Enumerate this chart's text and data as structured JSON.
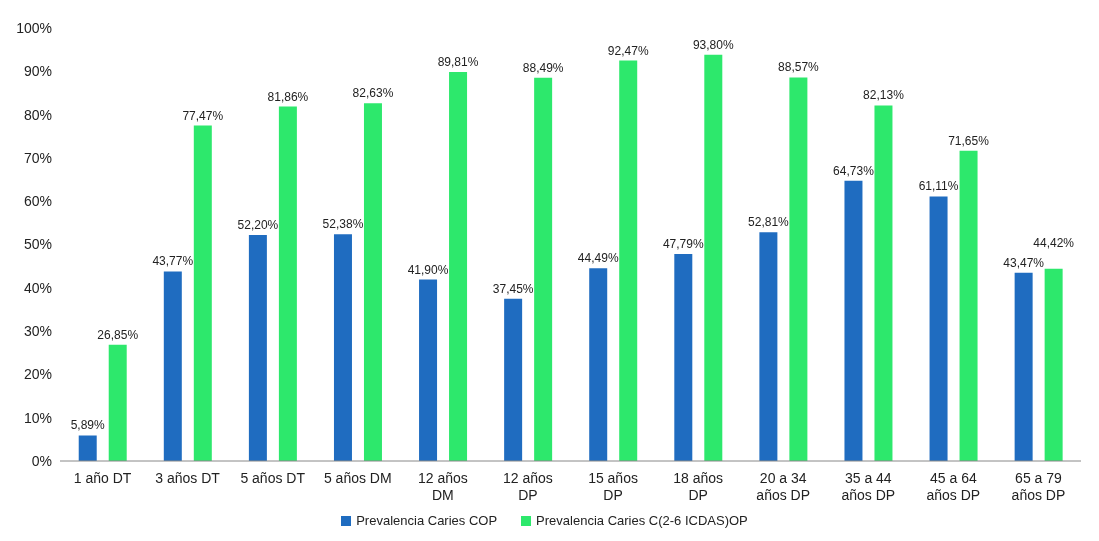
{
  "chart_data": {
    "type": "bar",
    "categories": [
      "1 año DT",
      "3 años DT",
      "5 años DT",
      "5 años DM",
      "12 años DM",
      "12 años DP",
      "15 años DP",
      "18 años DP",
      "20 a 34 años DP",
      "35 a 44 años DP",
      "45 a 64 años DP",
      "65 a 79 años DP"
    ],
    "series": [
      {
        "name": "Prevalencia Caries COP",
        "color": "#1f6cc0",
        "values": [
          5.89,
          43.77,
          52.2,
          52.38,
          41.9,
          37.45,
          44.49,
          47.79,
          52.81,
          64.73,
          61.11,
          43.47
        ],
        "value_labels": [
          "5,89%",
          "43,77%",
          "52,20%",
          "52,38%",
          "41,90%",
          "37,45%",
          "44,49%",
          "47,79%",
          "52,81%",
          "64,73%",
          "61,11%",
          "43,47%"
        ]
      },
      {
        "name": "Prevalencia Caries C(2-6 ICDAS)OP",
        "color": "#2de86c",
        "values": [
          26.85,
          77.47,
          81.86,
          82.63,
          89.81,
          88.49,
          92.47,
          93.8,
          88.57,
          82.13,
          71.65,
          44.42
        ],
        "value_labels": [
          "26,85%",
          "77,47%",
          "81,86%",
          "82,63%",
          "89,81%",
          "88,49%",
          "92,47%",
          "93,80%",
          "88,57%",
          "82,13%",
          "71,65%",
          "44,42%"
        ]
      }
    ],
    "ylim": [
      0,
      100
    ],
    "yticks": [
      {
        "value": 0,
        "label": "0%"
      },
      {
        "value": 10,
        "label": "10%"
      },
      {
        "value": 20,
        "label": "20%"
      },
      {
        "value": 30,
        "label": "30%"
      },
      {
        "value": 40,
        "label": "40%"
      },
      {
        "value": 50,
        "label": "50%"
      },
      {
        "value": 60,
        "label": "60%"
      },
      {
        "value": 70,
        "label": "70%"
      },
      {
        "value": 80,
        "label": "80%"
      },
      {
        "value": 90,
        "label": "90%"
      },
      {
        "value": 100,
        "label": "100%"
      }
    ],
    "legend": "bottom"
  }
}
